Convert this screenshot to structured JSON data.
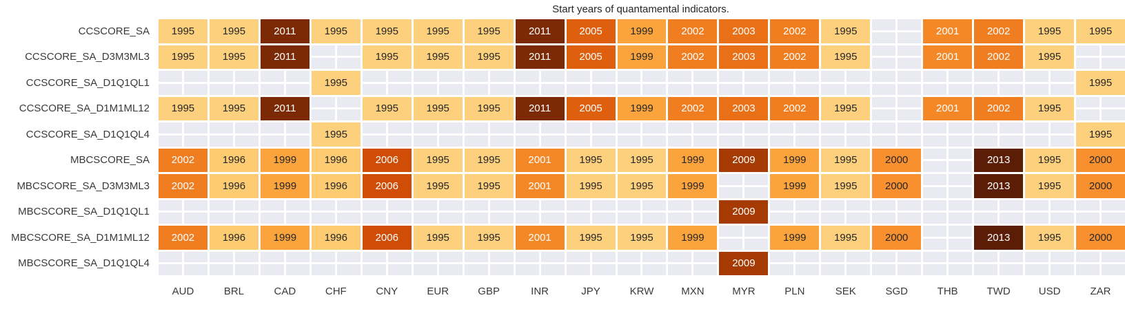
{
  "chart_data": {
    "type": "heatmap",
    "title": "Start years of quantamental indicators.",
    "xlabel": "",
    "ylabel": "",
    "legend": "none",
    "columns": [
      "AUD",
      "BRL",
      "CAD",
      "CHF",
      "CNY",
      "EUR",
      "GBP",
      "INR",
      "JPY",
      "KRW",
      "MXN",
      "MYR",
      "PLN",
      "SEK",
      "SGD",
      "THB",
      "TWD",
      "USD",
      "ZAR"
    ],
    "rows": [
      {
        "label": "CCSCORE_SA",
        "values": [
          1995,
          1995,
          2011,
          1995,
          1995,
          1995,
          1995,
          2011,
          2005,
          1999,
          2002,
          2003,
          2002,
          1995,
          null,
          2001,
          2002,
          1995,
          1995
        ]
      },
      {
        "label": "CCSCORE_SA_D3M3ML3",
        "values": [
          1995,
          1995,
          2011,
          null,
          1995,
          1995,
          1995,
          2011,
          2005,
          1999,
          2002,
          2003,
          2002,
          1995,
          null,
          2001,
          2002,
          1995,
          null
        ]
      },
      {
        "label": "CCSCORE_SA_D1Q1QL1",
        "values": [
          null,
          null,
          null,
          1995,
          null,
          null,
          null,
          null,
          null,
          null,
          null,
          null,
          null,
          null,
          null,
          null,
          null,
          null,
          1995
        ]
      },
      {
        "label": "CCSCORE_SA_D1M1ML12",
        "values": [
          1995,
          1995,
          2011,
          null,
          1995,
          1995,
          1995,
          2011,
          2005,
          1999,
          2002,
          2003,
          2002,
          1995,
          null,
          2001,
          2002,
          1995,
          null
        ]
      },
      {
        "label": "CCSCORE_SA_D1Q1QL4",
        "values": [
          null,
          null,
          null,
          1995,
          null,
          null,
          null,
          null,
          null,
          null,
          null,
          null,
          null,
          null,
          null,
          null,
          null,
          null,
          1995
        ]
      },
      {
        "label": "MBCSCORE_SA",
        "values": [
          2002,
          1996,
          1999,
          1996,
          2006,
          1995,
          1995,
          2001,
          1995,
          1995,
          1999,
          2009,
          1999,
          1995,
          2000,
          null,
          2013,
          1995,
          2000
        ]
      },
      {
        "label": "MBCSCORE_SA_D3M3ML3",
        "values": [
          2002,
          1996,
          1999,
          1996,
          2006,
          1995,
          1995,
          2001,
          1995,
          1995,
          1999,
          null,
          1999,
          1995,
          2000,
          null,
          2013,
          1995,
          2000
        ]
      },
      {
        "label": "MBCSCORE_SA_D1Q1QL1",
        "values": [
          null,
          null,
          null,
          null,
          null,
          null,
          null,
          null,
          null,
          null,
          null,
          2009,
          null,
          null,
          null,
          null,
          null,
          null,
          null
        ]
      },
      {
        "label": "MBCSCORE_SA_D1M1ML12",
        "values": [
          2002,
          1996,
          1999,
          1996,
          2006,
          1995,
          1995,
          2001,
          1995,
          1995,
          1999,
          null,
          1999,
          1995,
          2000,
          null,
          2013,
          1995,
          2000
        ]
      },
      {
        "label": "MBCSCORE_SA_D1Q1QL4",
        "values": [
          null,
          null,
          null,
          null,
          null,
          null,
          null,
          null,
          null,
          null,
          null,
          2009,
          null,
          null,
          null,
          null,
          null,
          null,
          null
        ]
      }
    ],
    "colors": {
      "year_colors": {
        "1995": "#FCD07D",
        "1996": "#FCCB72",
        "1999": "#FBA43D",
        "2000": "#F89030",
        "2001": "#F58826",
        "2002": "#F07D20",
        "2003": "#EA7017",
        "2005": "#DE5F0E",
        "2006": "#CF4D06",
        "2009": "#A63A03",
        "2011": "#7C2A05",
        "2013": "#5C1D07"
      },
      "dark_text_years": [
        "1995",
        "1996",
        "1999",
        "2000"
      ],
      "dark_text_color": "#262626",
      "light_text_color": "#FFFFFF",
      "empty_cell_color": "#EAEAF2",
      "grid_line_color": "#FFFFFF"
    }
  }
}
